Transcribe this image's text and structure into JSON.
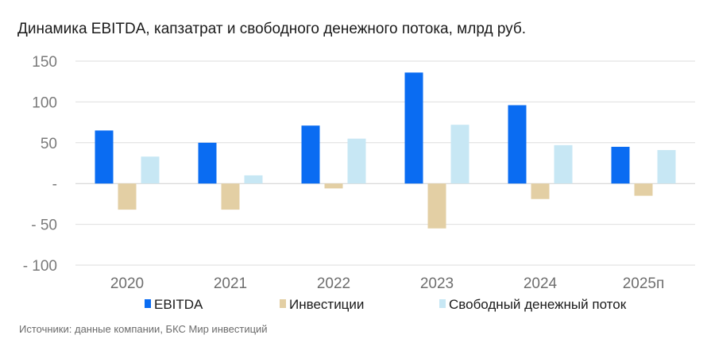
{
  "title": "Динамика EBITDA, капзатрат и свободного денежного потока, млрд руб.",
  "source": "Источники: данные компании, БКС Мир инвестиций",
  "chart_data": {
    "type": "bar",
    "categories": [
      "2020",
      "2021",
      "2022",
      "2023",
      "2024",
      "2025п"
    ],
    "series": [
      {
        "name": "EBITDA",
        "color": "#0a6cf2",
        "values": [
          65,
          50,
          71,
          136,
          96,
          45
        ]
      },
      {
        "name": "Инвестиции",
        "color": "#e3cfa4",
        "values": [
          -32,
          -32,
          -6,
          -55,
          -19,
          -15
        ]
      },
      {
        "name": "Свободный денежный поток",
        "color": "#c7e7f4",
        "values": [
          33,
          10,
          55,
          72,
          47,
          41
        ]
      }
    ],
    "ylim": [
      -100,
      150
    ],
    "yticks": [
      150,
      100,
      50,
      0,
      -50,
      -100
    ],
    "ytick_labels": [
      "150",
      "100",
      "50",
      "-",
      "- 50",
      "- 100"
    ],
    "grid": true,
    "legend_position": "bottom"
  }
}
